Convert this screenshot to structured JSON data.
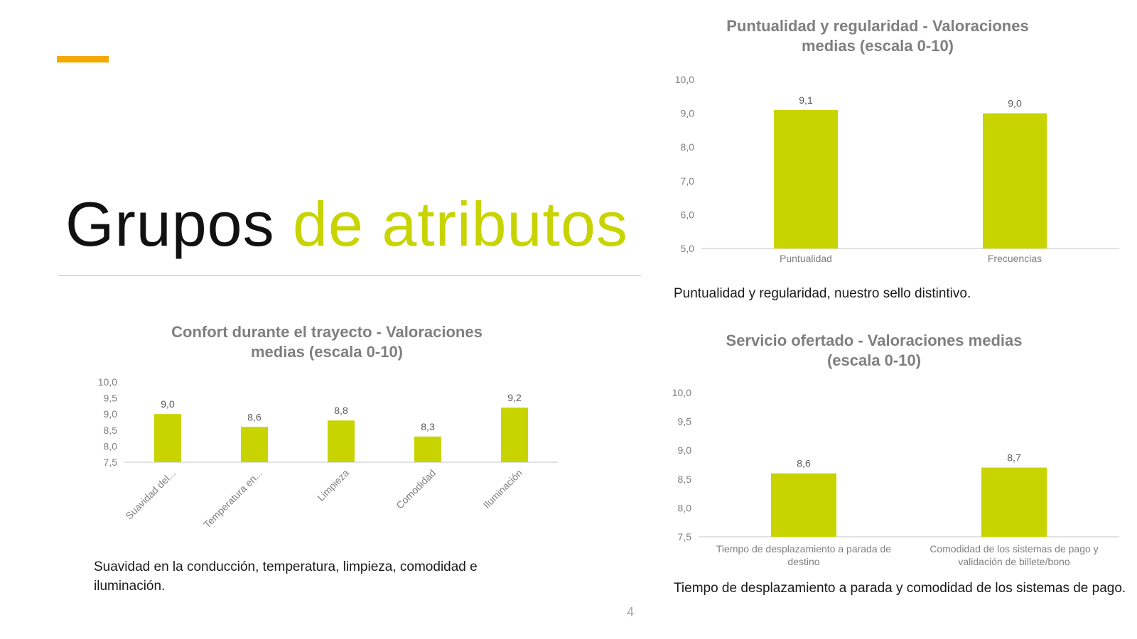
{
  "slide": {
    "title_part1": "Grupos",
    "title_part2": "de atributos",
    "page_number": "4",
    "accent_color": "#f5a800",
    "highlight_color": "#c8d400"
  },
  "captions": {
    "confort": "Suavidad en la conducción, temperatura, limpieza, comodidad e iluminación.",
    "puntualidad": "Puntualidad y regularidad, nuestro sello distintivo.",
    "servicio": "Tiempo de desplazamiento a parada y comodidad de los sistemas de pago."
  },
  "chart_data": [
    {
      "id": "puntualidad",
      "type": "bar",
      "title_lines": [
        "Puntualidad y regularidad - Valoraciones",
        "medias (escala 0-10)"
      ],
      "categories": [
        "Puntualidad",
        "Frecuencias"
      ],
      "category_lines": [
        [
          "Puntualidad"
        ],
        [
          "Frecuencias"
        ]
      ],
      "values": [
        9.1,
        9.0
      ],
      "value_labels": [
        "9,1",
        "9,0"
      ],
      "ylim": [
        5.0,
        10.0
      ],
      "yticks": [
        5.0,
        6.0,
        7.0,
        8.0,
        9.0,
        10.0
      ],
      "ytick_labels": [
        "5,0",
        "6,0",
        "7,0",
        "8,0",
        "9,0",
        "10,0"
      ],
      "xlabel": "",
      "ylabel": "",
      "grid": false,
      "bar_color": "#c8d400"
    },
    {
      "id": "confort",
      "type": "bar",
      "title_lines": [
        "Confort durante el trayecto - Valoraciones",
        "medias (escala 0-10)"
      ],
      "categories": [
        "Suavidad del...",
        "Temperatura en...",
        "Limpieza",
        "Comodidad",
        "Iluminación"
      ],
      "category_lines": [
        [
          "Suavidad del..."
        ],
        [
          "Temperatura en..."
        ],
        [
          "Limpieza"
        ],
        [
          "Comodidad"
        ],
        [
          "Iluminación"
        ]
      ],
      "values": [
        9.0,
        8.6,
        8.8,
        8.3,
        9.2
      ],
      "value_labels": [
        "9,0",
        "8,6",
        "8,8",
        "8,3",
        "9,2"
      ],
      "ylim": [
        7.5,
        10.0
      ],
      "yticks": [
        7.5,
        8.0,
        8.5,
        9.0,
        9.5,
        10.0
      ],
      "ytick_labels": [
        "7,5",
        "8,0",
        "8,5",
        "9,0",
        "9,5",
        "10,0"
      ],
      "xlabel": "",
      "ylabel": "",
      "grid": false,
      "bar_color": "#c8d400"
    },
    {
      "id": "servicio",
      "type": "bar",
      "title_lines": [
        "Servicio ofertado -  Valoraciones medias",
        "(escala 0-10)"
      ],
      "categories": [
        "Tiempo de desplazamiento a parada de destino",
        "Comodidad de los sistemas de pago y validación de billete/bono"
      ],
      "category_lines": [
        [
          "Tiempo de desplazamiento a parada de",
          "destino"
        ],
        [
          "Comodidad de los sistemas de pago y",
          "validación de billete/bono"
        ]
      ],
      "values": [
        8.6,
        8.7
      ],
      "value_labels": [
        "8,6",
        "8,7"
      ],
      "ylim": [
        7.5,
        10.0
      ],
      "yticks": [
        7.5,
        8.0,
        8.5,
        9.0,
        9.5,
        10.0
      ],
      "ytick_labels": [
        "7,5",
        "8,0",
        "8,5",
        "9,0",
        "9,5",
        "10,0"
      ],
      "xlabel": "",
      "ylabel": "",
      "grid": false,
      "bar_color": "#c8d400"
    }
  ]
}
